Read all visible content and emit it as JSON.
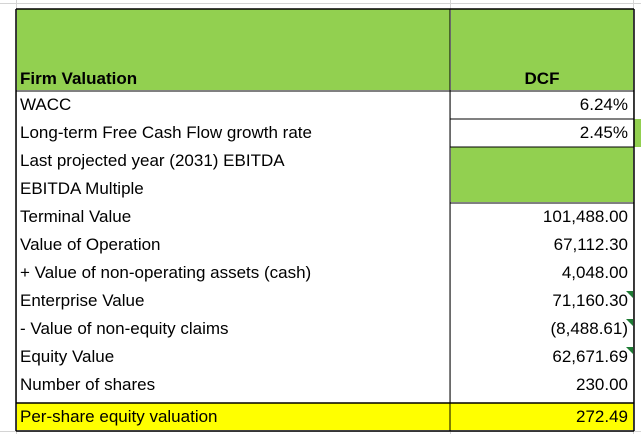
{
  "table": {
    "header": {
      "label": "Firm Valuation",
      "column": "DCF"
    },
    "rows": [
      {
        "label": "WACC",
        "value": "6.24%"
      },
      {
        "label": "Long-term Free Cash Flow growth rate",
        "value": "2.45%"
      },
      {
        "label": "Last projected year (2031) EBITDA",
        "value": ""
      },
      {
        "label": "EBITDA Multiple",
        "value": ""
      },
      {
        "label": "Terminal Value",
        "value": "101,488.00"
      },
      {
        "label": "Value of Operation",
        "value": "67,112.30"
      },
      {
        "label": "+ Value of non-operating assets (cash)",
        "value": "4,048.00"
      },
      {
        "label": "Enterprise Value",
        "value": "71,160.30"
      },
      {
        "label": "- Value of non-equity claims",
        "value": "(8,488.61)"
      },
      {
        "label": "Equity Value",
        "value": "62,671.69"
      },
      {
        "label": "Number of shares",
        "value": "230.00"
      },
      {
        "label": "Per-share equity valuation",
        "value": "272.49"
      }
    ]
  },
  "colors": {
    "header_fill": "#92d050",
    "input_fill": "#92d050",
    "highlight_fill": "#ffff00",
    "gridline": "#d4d4d4",
    "border": "#000000"
  }
}
